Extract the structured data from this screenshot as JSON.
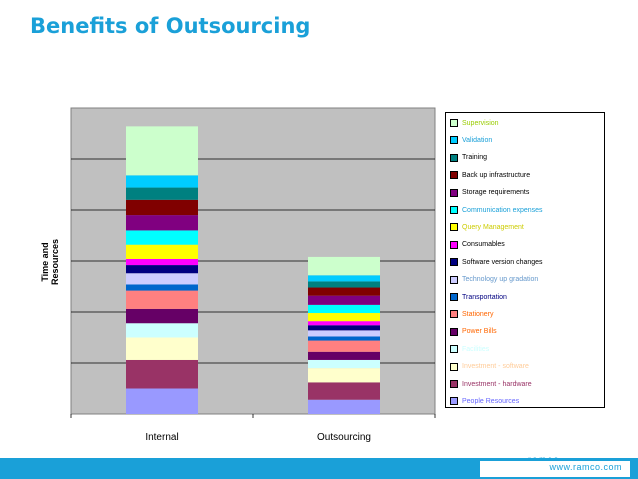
{
  "slide": {
    "title": "Benefits of Outsourcing",
    "footer_url": "www.ramco.com",
    "footer_brand": "ramco"
  },
  "chart_data": {
    "type": "bar",
    "stacked": true,
    "title": "",
    "xlabel": "",
    "ylabel": "Time and Resources",
    "ylim": [
      0,
      300
    ],
    "grid": true,
    "legend_position": "right",
    "categories": [
      "Internal",
      "Outsourcing"
    ],
    "series": [
      {
        "name": "People Resources",
        "values": [
          25,
          14
        ],
        "color": "#9999ff"
      },
      {
        "name": "Investment - hardware",
        "values": [
          28,
          17
        ],
        "color": "#993366"
      },
      {
        "name": "Investment - software",
        "values": [
          22,
          14
        ],
        "color": "#ffffcc"
      },
      {
        "name": "Facilities",
        "values": [
          14,
          8
        ],
        "color": "#ccffff"
      },
      {
        "name": "Power Bills",
        "values": [
          14,
          8
        ],
        "color": "#660066"
      },
      {
        "name": "Stationery",
        "values": [
          18,
          11
        ],
        "color": "#ff8080"
      },
      {
        "name": "Transportation",
        "values": [
          6,
          4
        ],
        "color": "#0066cc"
      },
      {
        "name": "Technology up gradation",
        "values": [
          11,
          6
        ],
        "color": "#ccccff"
      },
      {
        "name": "Software version changes",
        "values": [
          8,
          5
        ],
        "color": "#000080"
      },
      {
        "name": "Consumables",
        "values": [
          6,
          4
        ],
        "color": "#ff00ff"
      },
      {
        "name": "Query Management",
        "values": [
          14,
          8
        ],
        "color": "#ffff00"
      },
      {
        "name": "Communication expenses",
        "values": [
          14,
          8
        ],
        "color": "#00ffff"
      },
      {
        "name": "Storage requirements",
        "values": [
          15,
          9
        ],
        "color": "#800080"
      },
      {
        "name": "Back up infrastructure",
        "values": [
          15,
          8
        ],
        "color": "#800000"
      },
      {
        "name": "Training",
        "values": [
          12,
          6
        ],
        "color": "#008080"
      },
      {
        "name": "Validation",
        "values": [
          12,
          6
        ],
        "color": "#00ccff"
      },
      {
        "name": "Supervision",
        "values": [
          48,
          18
        ],
        "color": "#ccffcc"
      }
    ],
    "legend_order": [
      "Supervision",
      "Validation",
      "Training",
      "Back up infrastructure",
      "Storage requirements",
      "Communication expenses",
      "Query Management",
      "Consumables",
      "Software version changes",
      "Technology up gradation",
      "Transportation",
      "Stationery",
      "Power Bills",
      "Facilities",
      "Investment - software",
      "Investment - hardware",
      "People Resources"
    ]
  }
}
